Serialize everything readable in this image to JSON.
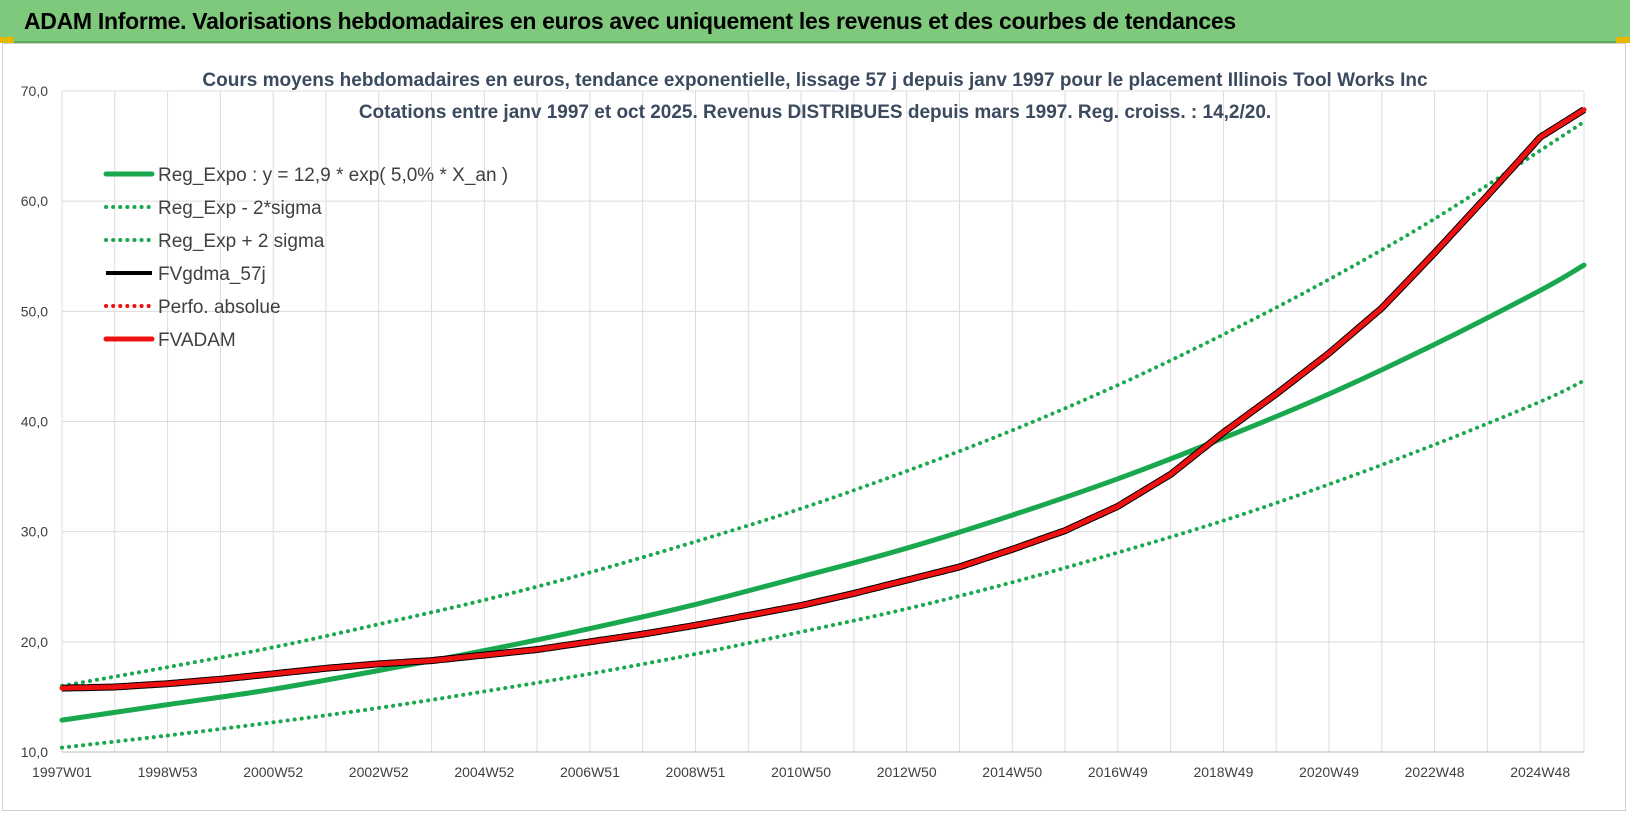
{
  "banner": {
    "title": "ADAM Informe. Valorisations hebdomadaires en euros avec uniquement les revenus et des courbes de tendances"
  },
  "colors": {
    "banner_bg": "#7fc97c",
    "reg_green": "#1aa84f",
    "adam_red": "#ee1111",
    "black": "#000000",
    "grid": "#dcdcdc"
  },
  "chart_data": {
    "type": "line",
    "title": [
      "Cours moyens hebdomadaires en euros, tendance exponentielle, lissage 57 j depuis janv 1997 pour le placement Illinois Tool Works Inc",
      "Cotations entre janv 1997 et oct 2025. Revenus DISTRIBUES depuis mars 1997. Reg. croiss. : 14,2/20."
    ],
    "xlabel": "",
    "ylabel": "",
    "ylim": [
      10,
      70
    ],
    "xlim": [
      1997.0,
      2025.83
    ],
    "yticks": [
      "10,0",
      "20,0",
      "30,0",
      "40,0",
      "50,0",
      "60,0",
      "70,0"
    ],
    "ytick_values": [
      10,
      20,
      30,
      40,
      50,
      60,
      70
    ],
    "xticks": [
      "1997W01",
      "1998W53",
      "2000W52",
      "2002W52",
      "2004W52",
      "2006W51",
      "2008W51",
      "2010W50",
      "2012W50",
      "2014W50",
      "2016W49",
      "2018W49",
      "2020W49",
      "2022W48",
      "2024W48"
    ],
    "xtick_values": [
      1997.0,
      1999.0,
      2001.0,
      2003.0,
      2005.0,
      2007.0,
      2009.0,
      2011.0,
      2013.0,
      2015.0,
      2017.0,
      2019.0,
      2021.0,
      2023.0,
      2025.0
    ],
    "grid": true,
    "legend_position": "top-left",
    "series": [
      {
        "name": "Reg_Expo : y = 12,9 * exp( 5,0% *  X_an )",
        "style": "solid-thick",
        "color": "#1aa84f",
        "x": [
          1997.0,
          1999.0,
          2001.0,
          2003.0,
          2005.0,
          2007.0,
          2009.0,
          2011.0,
          2013.0,
          2015.0,
          2017.0,
          2019.0,
          2021.0,
          2023.0,
          2025.0,
          2025.83
        ],
        "y": [
          12.9,
          14.3,
          15.7,
          17.4,
          19.2,
          21.2,
          23.4,
          25.9,
          28.5,
          31.5,
          34.8,
          38.5,
          42.5,
          47.0,
          51.9,
          54.2
        ]
      },
      {
        "name": "Reg_Exp - 2*sigma",
        "style": "dotted",
        "color": "#1aa84f",
        "x": [
          1997.0,
          1999.0,
          2001.0,
          2003.0,
          2005.0,
          2007.0,
          2009.0,
          2011.0,
          2013.0,
          2015.0,
          2017.0,
          2019.0,
          2021.0,
          2023.0,
          2025.0,
          2025.83
        ],
        "y": [
          10.4,
          11.5,
          12.7,
          14.0,
          15.5,
          17.1,
          18.9,
          20.9,
          23.0,
          25.4,
          28.1,
          31.0,
          34.3,
          37.9,
          41.8,
          43.7
        ]
      },
      {
        "name": "Reg_Exp + 2 sigma",
        "style": "dotted",
        "color": "#1aa84f",
        "x": [
          1997.0,
          1999.0,
          2001.0,
          2003.0,
          2005.0,
          2007.0,
          2009.0,
          2011.0,
          2013.0,
          2015.0,
          2017.0,
          2019.0,
          2021.0,
          2023.0,
          2025.0,
          2025.83
        ],
        "y": [
          16.0,
          17.7,
          19.5,
          21.6,
          23.8,
          26.3,
          29.1,
          32.1,
          35.5,
          39.2,
          43.3,
          47.9,
          52.9,
          58.4,
          64.6,
          67.2
        ]
      },
      {
        "name": "FVgdma_57j",
        "style": "solid",
        "color": "#000000",
        "x": [
          1997.0,
          1998.0,
          1999.0,
          2000.0,
          2001.0,
          2002.0,
          2003.0,
          2004.0,
          2005.0,
          2006.0,
          2007.0,
          2008.0,
          2009.0,
          2010.0,
          2011.0,
          2012.0,
          2013.0,
          2014.0,
          2015.0,
          2016.0,
          2017.0,
          2018.0,
          2019.0,
          2020.0,
          2021.0,
          2022.0,
          2023.0,
          2024.0,
          2025.0,
          2025.83
        ],
        "y": [
          15.8,
          15.9,
          16.2,
          16.6,
          17.1,
          17.6,
          18.0,
          18.3,
          18.8,
          19.3,
          20.0,
          20.7,
          21.5,
          22.4,
          23.3,
          24.4,
          25.6,
          26.8,
          28.4,
          30.1,
          32.3,
          35.2,
          39.0,
          42.5,
          46.2,
          50.3,
          55.3,
          60.5,
          65.8,
          68.3
        ]
      },
      {
        "name": "Perfo. absolue",
        "style": "dotted",
        "color": "#ee1111",
        "x": [
          1997.0,
          1998.0,
          1999.0,
          2000.0,
          2001.0,
          2002.0,
          2003.0,
          2004.0,
          2005.0,
          2006.0,
          2007.0,
          2008.0,
          2009.0,
          2010.0,
          2011.0,
          2012.0,
          2013.0,
          2014.0,
          2015.0,
          2016.0,
          2017.0,
          2018.0,
          2019.0,
          2020.0,
          2021.0,
          2022.0,
          2023.0,
          2024.0,
          2025.0,
          2025.83
        ],
        "y": [
          15.8,
          15.9,
          16.2,
          16.6,
          17.1,
          17.6,
          18.0,
          18.3,
          18.8,
          19.3,
          20.0,
          20.7,
          21.5,
          22.4,
          23.3,
          24.4,
          25.6,
          26.8,
          28.4,
          30.1,
          32.3,
          35.2,
          39.0,
          42.5,
          46.2,
          50.3,
          55.3,
          60.5,
          65.8,
          68.3
        ]
      },
      {
        "name": "FVADAM",
        "style": "solid-thick",
        "color": "#ee1111",
        "x": [
          1997.0,
          1998.0,
          1999.0,
          2000.0,
          2001.0,
          2002.0,
          2003.0,
          2004.0,
          2005.0,
          2006.0,
          2007.0,
          2008.0,
          2009.0,
          2010.0,
          2011.0,
          2012.0,
          2013.0,
          2014.0,
          2015.0,
          2016.0,
          2017.0,
          2018.0,
          2019.0,
          2020.0,
          2021.0,
          2022.0,
          2023.0,
          2024.0,
          2025.0,
          2025.83
        ],
        "y": [
          15.8,
          15.9,
          16.2,
          16.6,
          17.1,
          17.6,
          18.0,
          18.3,
          18.8,
          19.3,
          20.0,
          20.7,
          21.5,
          22.4,
          23.3,
          24.4,
          25.6,
          26.8,
          28.4,
          30.1,
          32.3,
          35.2,
          39.0,
          42.5,
          46.2,
          50.3,
          55.3,
          60.5,
          65.8,
          68.3
        ]
      }
    ]
  }
}
